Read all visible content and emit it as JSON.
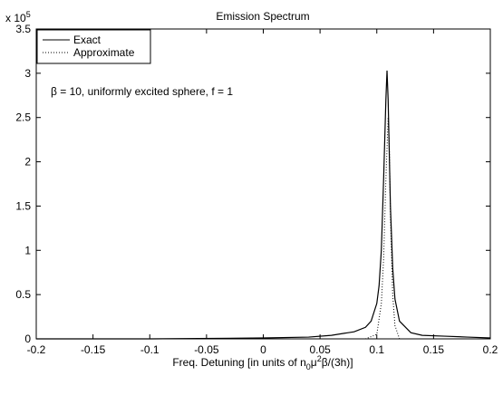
{
  "chart_data": {
    "type": "line",
    "title": "Emission Spectrum",
    "xlabel": [
      "Freq. Detuning [in units of n",
      "0",
      "μ",
      "2",
      "β/(3h)]"
    ],
    "y_multiplier": [
      "x 10",
      "5"
    ],
    "annotation": "β = 10, uniformly excited sphere, f = 1",
    "xlim": [
      -0.2,
      0.2
    ],
    "xticks": [
      -0.2,
      -0.15,
      -0.1,
      -0.05,
      0,
      0.05,
      0.1,
      0.15,
      0.2
    ],
    "ylim": [
      0,
      3.5
    ],
    "yticks": [
      0,
      0.5,
      1,
      1.5,
      2,
      2.5,
      3,
      3.5
    ],
    "grid": false,
    "legend": "upper-left",
    "series": [
      {
        "name": "Exact",
        "color": "#000000",
        "style": "solid",
        "x": [
          -0.2,
          -0.1,
          0,
          0.04,
          0.06,
          0.08,
          0.09,
          0.095,
          0.1,
          0.102,
          0.104,
          0.106,
          0.108,
          0.109,
          0.11,
          0.112,
          0.114,
          0.116,
          0.12,
          0.13,
          0.14,
          0.16,
          0.18,
          0.2
        ],
        "values": [
          0,
          0,
          0.01,
          0.02,
          0.04,
          0.08,
          0.13,
          0.2,
          0.4,
          0.6,
          1.0,
          1.8,
          2.7,
          3.03,
          2.7,
          1.5,
          0.8,
          0.45,
          0.2,
          0.07,
          0.04,
          0.03,
          0.02,
          0.01
        ]
      },
      {
        "name": "Approximate",
        "color": "#000000",
        "style": "dotted",
        "x": [
          -0.2,
          0,
          0.09,
          0.1,
          0.104,
          0.106,
          0.108,
          0.11,
          0.111,
          0.112,
          0.114,
          0.116,
          0.12,
          0.2
        ],
        "values": [
          0,
          0,
          0,
          0.05,
          0.4,
          0.9,
          1.8,
          2.5,
          2.2,
          1.4,
          0.5,
          0.15,
          0,
          0
        ]
      }
    ]
  }
}
